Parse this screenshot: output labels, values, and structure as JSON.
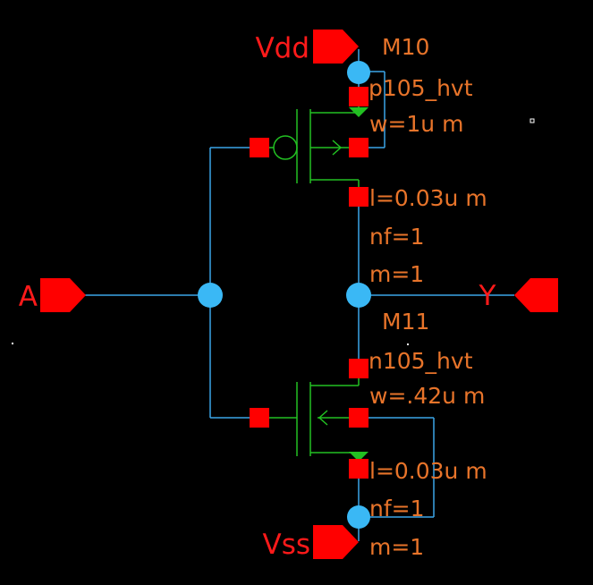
{
  "colors": {
    "background": "#000000",
    "wire": "#3aa6e8",
    "device": "#22c022",
    "pin": "#ff0000",
    "terminal": "#ff0000",
    "junction": "#3ab8f5",
    "param_text": "#e8742a",
    "pin_text": "#ff1a1a"
  },
  "pins": {
    "vdd": "Vdd",
    "vss": "Vss",
    "input": "A",
    "output": "Y"
  },
  "m10": {
    "name": "M10",
    "model": "p105_hvt",
    "w": "w=1u m",
    "l": "l=0.03u m",
    "nf": "nf=1",
    "m": "m=1"
  },
  "m11": {
    "name": "M11",
    "model": "n105_hvt",
    "w": "w=.42u m",
    "l": "l=0.03u m",
    "nf": "nf=1",
    "m": "m=1"
  }
}
